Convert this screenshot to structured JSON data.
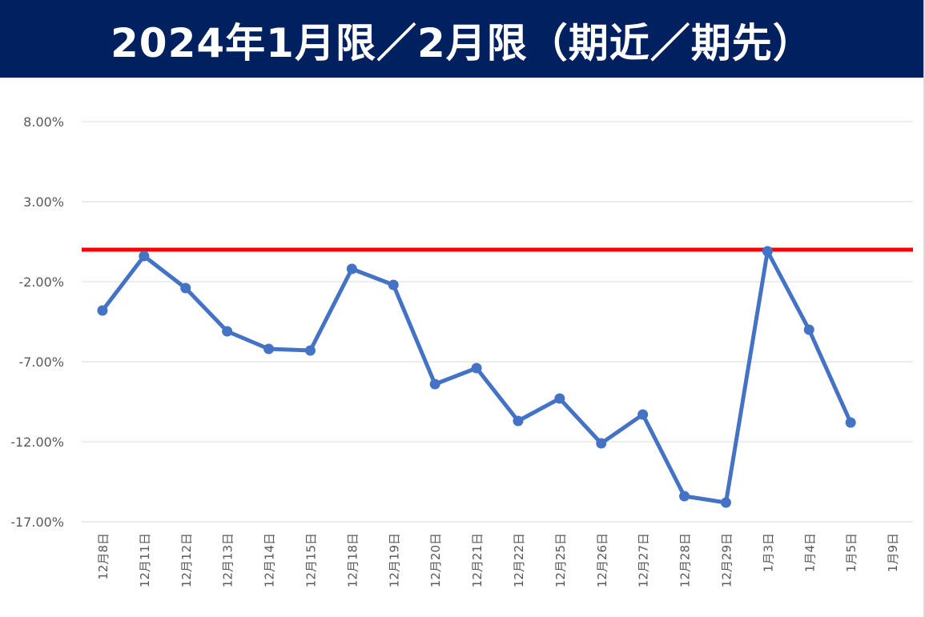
{
  "chart_data": {
    "type": "line",
    "title": "2024年1月限／2月限（期近／期先）",
    "categories": [
      "12月8日",
      "12月11日",
      "12月12日",
      "12月13日",
      "12月14日",
      "12月15日",
      "12月18日",
      "12月19日",
      "12月20日",
      "12月21日",
      "12月22日",
      "12月25日",
      "12月26日",
      "12月27日",
      "12月28日",
      "12月29日",
      "1月3日",
      "1月4日",
      "1月5日",
      "1月9日"
    ],
    "series": [
      {
        "color": "#4472C4",
        "values": [
          -3.8,
          -0.4,
          -2.4,
          -5.1,
          -6.2,
          -6.3,
          -1.2,
          -2.2,
          -8.4,
          -7.4,
          -10.7,
          -9.3,
          -12.1,
          -10.3,
          -15.4,
          -15.8,
          -0.1,
          -5.0,
          -10.8,
          null
        ]
      }
    ],
    "reference_line": {
      "value": 0.0,
      "color": "#FF0000"
    },
    "yticks": [
      8,
      3,
      -2,
      -7,
      -12,
      -17
    ],
    "ytick_labels": [
      "8.00%",
      "3.00%",
      "-2.00%",
      "-7.00%",
      "-12.00%",
      "-17.00%"
    ],
    "ylim": [
      -17,
      8
    ],
    "xlabel": "",
    "ylabel": "",
    "grid": true,
    "legend": "none"
  }
}
